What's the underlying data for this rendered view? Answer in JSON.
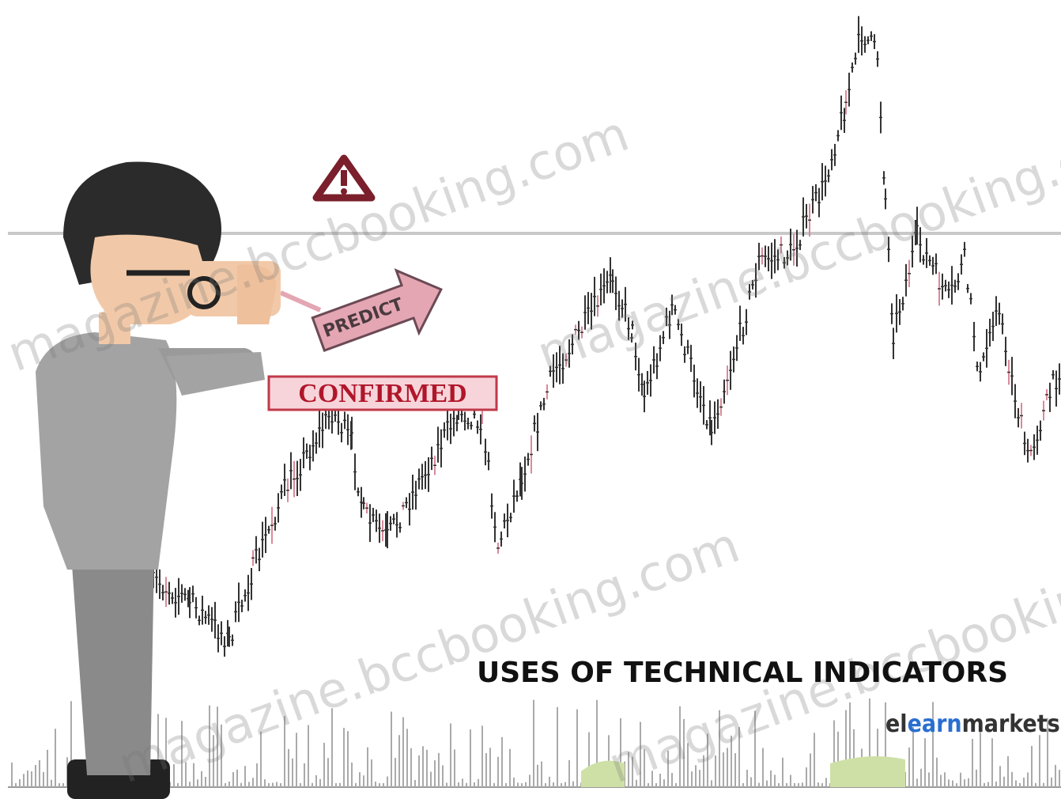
{
  "watermark": "magazine.bccbooking.com",
  "labels": {
    "predict": "PREDICT",
    "confirmed": "CONFIRMED"
  },
  "title": "USES OF TECHNICAL INDICATORS",
  "brand": {
    "prefix": "el",
    "highlight": "earn",
    "suffix": "markets"
  }
}
